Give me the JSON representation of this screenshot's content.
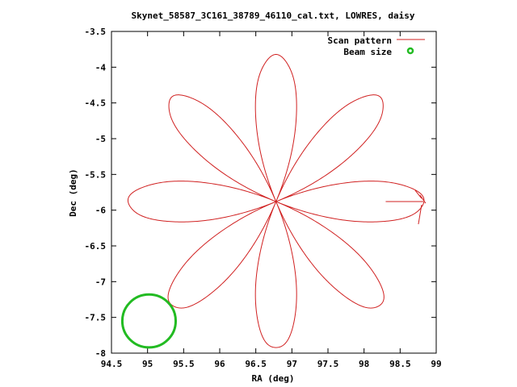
{
  "chart_data": {
    "type": "scatter",
    "title": "Skynet_58587_3C161_38789_46110_cal.txt, LOWRES, daisy",
    "xlabel": "RA (deg)",
    "ylabel": "Dec (deg)",
    "xlim": [
      94.5,
      99
    ],
    "ylim": [
      -8,
      -3.5
    ],
    "x_ticks": [
      "94.5",
      "95",
      "95.5",
      "96",
      "96.5",
      "97",
      "97.5",
      "98",
      "98.5",
      "99"
    ],
    "y_ticks": [
      "-3.5",
      "-4",
      "-4.5",
      "-5",
      "-5.5",
      "-6",
      "-6.5",
      "-7",
      "-7.5",
      "-8"
    ],
    "grid": false,
    "legend_position": "top-right",
    "series": [
      {
        "name": "Scan pattern",
        "color": "#d02020",
        "kind": "line",
        "pattern": "daisy",
        "center": [
          96.78,
          -5.88
        ],
        "radius_deg": 2.05,
        "petals": 8,
        "petal_axes_deg": [
          0,
          45,
          90,
          135
        ],
        "slew_segment": [
          [
            98.3,
            -5.88
          ],
          [
            98.82,
            -5.88
          ]
        ]
      },
      {
        "name": "Beam size",
        "color": "#22bb22",
        "kind": "circle",
        "center": [
          95.02,
          -7.55
        ],
        "radius_deg": 0.37
      }
    ]
  }
}
